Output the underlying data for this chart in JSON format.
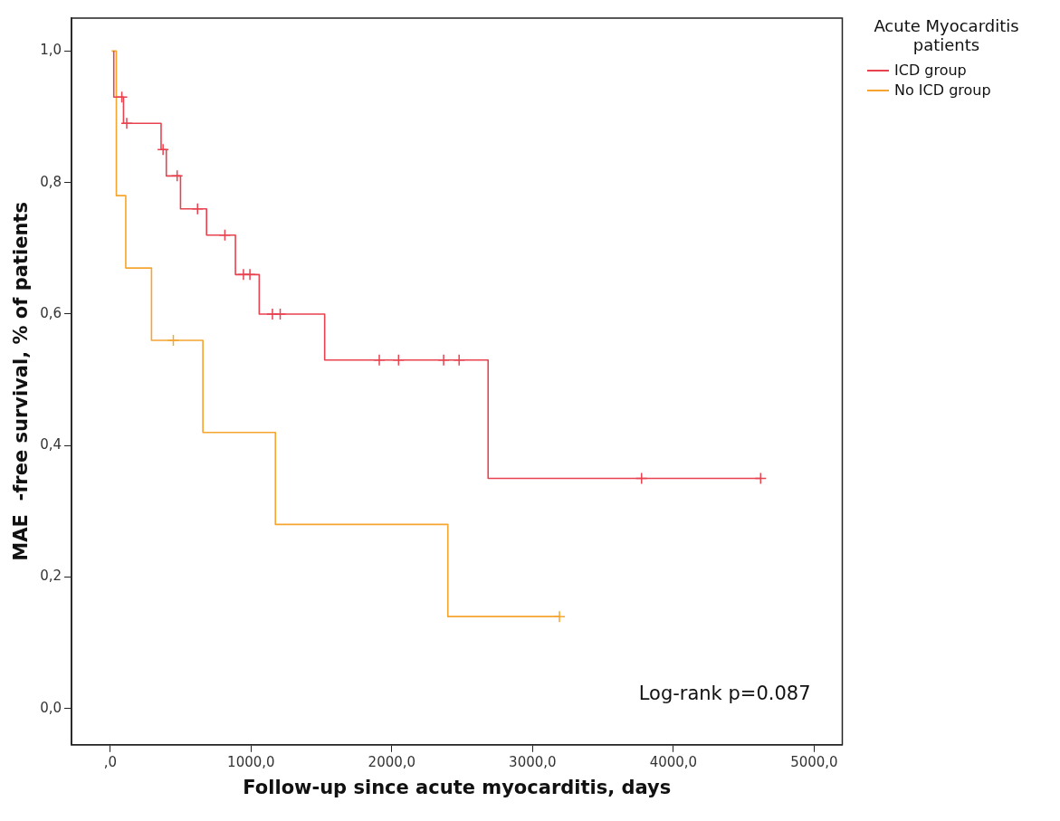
{
  "chart_data": {
    "type": "step",
    "xlabel": "Follow-up since acute myocarditis, days",
    "ylabel": "MAE  -free survival, % of patients",
    "legend_title": "Acute Myocarditis patients",
    "legend": "right",
    "grid": false,
    "xlim": [
      -275,
      5200
    ],
    "ylim": [
      -0.055,
      1.05
    ],
    "xticks": [
      {
        "value": 0,
        "label": ",0"
      },
      {
        "value": 1000,
        "label": "1000,0"
      },
      {
        "value": 2000,
        "label": "2000,0"
      },
      {
        "value": 3000,
        "label": "3000,0"
      },
      {
        "value": 4000,
        "label": "4000,0"
      },
      {
        "value": 5000,
        "label": "5000,0"
      }
    ],
    "yticks": [
      {
        "value": 0,
        "label": "0,0"
      },
      {
        "value": 0.2,
        "label": "0,2"
      },
      {
        "value": 0.4,
        "label": "0,4"
      },
      {
        "value": 0.6,
        "label": "0,6"
      },
      {
        "value": 0.8,
        "label": "0,8"
      },
      {
        "value": 1,
        "label": "1,0"
      }
    ],
    "series": [
      {
        "name": "ICD group",
        "marker": "none",
        "color": "#e8424f",
        "x": [
          25,
          25,
          94,
          361,
          398,
          499,
          684,
          889,
          1058,
          1523,
          2684,
          4620
        ],
        "values": [
          1,
          0.93,
          0.89,
          0.85,
          0.81,
          0.76,
          0.72,
          0.66,
          0.6,
          0.53,
          0.35,
          0.35
        ]
      },
      {
        "name": "No ICD group",
        "marker": "none",
        "color": "#f5a530",
        "x": [
          10,
          43,
          110,
          293,
          658,
          1173,
          2398,
          3191
        ],
        "values": [
          1,
          0.78,
          0.67,
          0.56,
          0.42,
          0.28,
          0.14,
          0.14
        ]
      },
      {
        "type": "scatter",
        "marker": "cross",
        "color": "#e8424f",
        "x": [
          82,
          117,
          375,
          475,
          620,
          814,
          946,
          992,
          1152,
          1207,
          1911,
          2048,
          2368,
          2478,
          3774,
          4620
        ],
        "values": [
          0.93,
          0.89,
          0.85,
          0.81,
          0.76,
          0.72,
          0.66,
          0.66,
          0.6,
          0.6,
          0.53,
          0.53,
          0.53,
          0.53,
          0.35,
          0.35
        ]
      },
      {
        "type": "scatter",
        "marker": "cross",
        "color": "#f5a530",
        "x": [
          448,
          3191
        ],
        "values": [
          0.56,
          0.14
        ]
      }
    ],
    "annotations": [
      "Log-rank p=0.087"
    ]
  }
}
